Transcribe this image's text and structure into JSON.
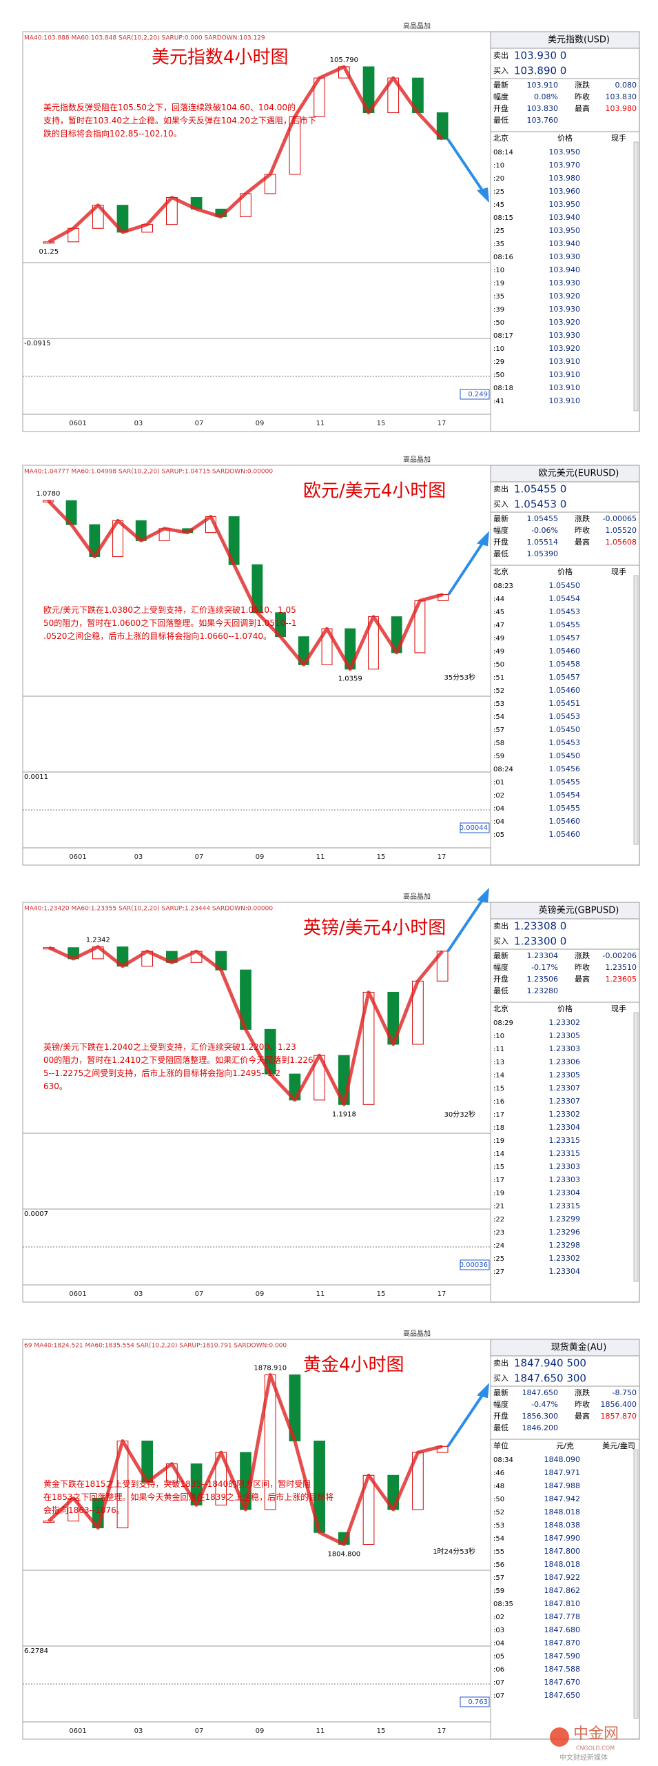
{
  "panels": [
    {
      "chart_title": "美元指数4小时图",
      "indicator": "MA40:103.888  MA60:103.848  SAR(10,2,20)  SARUP:0.000  SARDOWN:103.129",
      "toolbar": "高品晶加",
      "annotation": "美元指数反弹受阻在105.50之下，回落连续跌破104.60、104.00的支持，暂时在103.40之上企稳。如果今天反弹在104.20之下遇阻，后市下跌的目标将会指向102.85--102.10。",
      "hi_label": "105.790",
      "lo_label": "01.25",
      "osc_label": "-0.0915",
      "macd_label": "0.249",
      "x_labels": [
        "0601",
        "03",
        "07",
        "09",
        "11",
        "15",
        "17"
      ],
      "prices": [
        101.25,
        101.6,
        102.2,
        101.5,
        101.7,
        102.4,
        102.1,
        101.9,
        102.5,
        103.0,
        104.5,
        105.5,
        105.79,
        104.6,
        105.5,
        104.6,
        103.91
      ],
      "ylim": [
        100.8,
        106.2
      ],
      "quote": {
        "title": "美元指数(USD)",
        "sell": [
          "卖出",
          "103.930 0"
        ],
        "buy": [
          "买入",
          "103.890 0"
        ],
        "stats": [
          [
            "最新",
            "103.910",
            "涨跌",
            "0.080"
          ],
          [
            "幅度",
            "0.08%",
            "昨收",
            "103.830"
          ],
          [
            "开盘",
            "103.830",
            "最高",
            "103.980"
          ],
          [
            "最低",
            "103.760"
          ]
        ],
        "header": [
          "北京",
          "价格",
          "现手"
        ],
        "ticks": [
          [
            "08:14",
            "103.950"
          ],
          [
            ":10",
            "103.970"
          ],
          [
            ":20",
            "103.980"
          ],
          [
            ":25",
            "103.960"
          ],
          [
            ":45",
            "103.950"
          ],
          [
            "08:15",
            "103.940"
          ],
          [
            ":25",
            "103.950"
          ],
          [
            ":35",
            "103.940"
          ],
          [
            "08:16",
            "103.930"
          ],
          [
            ":10",
            "103.940"
          ],
          [
            ":19",
            "103.930"
          ],
          [
            ":35",
            "103.920"
          ],
          [
            ":39",
            "103.930"
          ],
          [
            ":50",
            "103.920"
          ],
          [
            "08:17",
            "103.930"
          ],
          [
            ":10",
            "103.920"
          ],
          [
            ":29",
            "103.910"
          ],
          [
            ":50",
            "103.910"
          ],
          [
            "08:18",
            "103.910"
          ],
          [
            ":41",
            "103.910"
          ]
        ]
      }
    },
    {
      "chart_title": "欧元/美元4小时图",
      "indicator": "MA40:1.04777  MA60:1.04998  SAR(10,2,20)  SARUP:1.04715  SARDOWN:0.00000",
      "toolbar": "高品晶加",
      "annotation": "欧元/美元下跌在1.0380之上受到支持，汇价连续突破1.0510、1.0550的阻力，暂时在1.0600之下回落整理。如果今天回调到1.0510--1.0520之间企稳，后市上涨的目标将会指向1.0660--1.0740。",
      "hi_label": "1.0780",
      "lo_label": "1.0359",
      "timer": "35分53秒",
      "osc_label": "0.0011",
      "macd_label": "0.00044",
      "x_labels": [
        "0601",
        "03",
        "07",
        "09",
        "11",
        "15",
        "17"
      ],
      "prices": [
        1.078,
        1.072,
        1.064,
        1.073,
        1.068,
        1.071,
        1.07,
        1.074,
        1.062,
        1.05,
        1.044,
        1.037,
        1.046,
        1.0359,
        1.049,
        1.04,
        1.053,
        1.05455
      ],
      "ylim": [
        1.03,
        1.082
      ],
      "quote": {
        "title": "欧元美元(EURUSD)",
        "sell": [
          "卖出",
          "1.05455 0"
        ],
        "buy": [
          "买入",
          "1.05453 0"
        ],
        "stats": [
          [
            "最新",
            "1.05455",
            "涨跌",
            "-0.00065"
          ],
          [
            "幅度",
            "-0.06%",
            "昨收",
            "1.05520"
          ],
          [
            "开盘",
            "1.05514",
            "最高",
            "1.05608"
          ],
          [
            "最低",
            "1.05390"
          ]
        ],
        "header": [
          "北京",
          "价格",
          "现手"
        ],
        "ticks": [
          [
            "08:23",
            "1.05450"
          ],
          [
            ":44",
            "1.05454"
          ],
          [
            ":45",
            "1.05453"
          ],
          [
            ":47",
            "1.05455"
          ],
          [
            ":49",
            "1.05457"
          ],
          [
            ":49",
            "1.05460"
          ],
          [
            ":50",
            "1.05458"
          ],
          [
            ":51",
            "1.05457"
          ],
          [
            ":52",
            "1.05460"
          ],
          [
            ":53",
            "1.05451"
          ],
          [
            ":54",
            "1.05453"
          ],
          [
            ":57",
            "1.05450"
          ],
          [
            ":58",
            "1.05453"
          ],
          [
            ":59",
            "1.05450"
          ],
          [
            "08:24",
            "1.05456"
          ],
          [
            ":01",
            "1.05455"
          ],
          [
            ":02",
            "1.05454"
          ],
          [
            ":04",
            "1.05455"
          ],
          [
            ":04",
            "1.05460"
          ],
          [
            ":05",
            "1.05460"
          ]
        ]
      }
    },
    {
      "chart_title": "英镑/美元4小时图",
      "indicator": "MA40:1.23420  MA60:1.23355  SAR(10,2,20)  SARUP:1.23444  SARDOWN:0.00000",
      "toolbar": "高品晶加",
      "annotation": "英镑/美元下跌在1.2040之上受到支持，汇价连续突破1.2200、1.2300的阻力，暂时在1.2410之下受阻回落整理。如果汇价今天回落到1.2265--1.2275之间受到支持，后市上涨的目标将会指向1.2495--1.2630。",
      "hi_label": "1.2342",
      "lo_label": "1.1918",
      "timer": "30分32秒",
      "osc_label": "0.0007",
      "macd_label": "0.00036",
      "x_labels": [
        "0601",
        "03",
        "07",
        "09",
        "11",
        "15",
        "17"
      ],
      "prices": [
        1.234,
        1.231,
        1.2342,
        1.229,
        1.233,
        1.23,
        1.233,
        1.228,
        1.212,
        1.2,
        1.193,
        1.205,
        1.1918,
        1.222,
        1.208,
        1.225,
        1.23304
      ],
      "ylim": [
        1.185,
        1.241
      ],
      "quote": {
        "title": "英镑美元(GBPUSD)",
        "sell": [
          "卖出",
          "1.23308 0"
        ],
        "buy": [
          "买入",
          "1.23300 0"
        ],
        "stats": [
          [
            "最新",
            "1.23304",
            "涨跌",
            "-0.00206"
          ],
          [
            "幅度",
            "-0.17%",
            "昨收",
            "1.23510"
          ],
          [
            "开盘",
            "1.23506",
            "最高",
            "1.23605"
          ],
          [
            "最低",
            "1.23280"
          ]
        ],
        "header": [
          "北京",
          "价格",
          "现手"
        ],
        "ticks": [
          [
            "08:29",
            "1.23302"
          ],
          [
            ":10",
            "1.23305"
          ],
          [
            ":11",
            "1.23303"
          ],
          [
            ":13",
            "1.23306"
          ],
          [
            ":14",
            "1.23305"
          ],
          [
            ":15",
            "1.23307"
          ],
          [
            ":16",
            "1.23307"
          ],
          [
            ":17",
            "1.23302"
          ],
          [
            ":18",
            "1.23304"
          ],
          [
            ":19",
            "1.23315"
          ],
          [
            ":14",
            "1.23315"
          ],
          [
            ":15",
            "1.23303"
          ],
          [
            ":17",
            "1.23303"
          ],
          [
            ":19",
            "1.23304"
          ],
          [
            ":21",
            "1.23315"
          ],
          [
            ":22",
            "1.23299"
          ],
          [
            ":23",
            "1.23296"
          ],
          [
            ":24",
            "1.23298"
          ],
          [
            ":25",
            "1.23302"
          ],
          [
            ":27",
            "1.23304"
          ]
        ]
      }
    },
    {
      "chart_title": "黄金4小时图",
      "indicator": "69 MA40:1824.521  MA60:1835.554  SAR(10,2,20)  SARUP:1810.791  SARDOWN:0.000",
      "toolbar": "高品晶加",
      "annotation": "黄金下跌在1815之上受到支持，突破1835--1840的阻力区间，暂时受阻在1853之下回落整理。如果今天黄金回落在1839之上企稳，后市上涨的目标将会指向1863--1876。",
      "hi_label": "1878.910",
      "lo_label": "1804.800",
      "timer": "1时24分53秒",
      "osc_label": "6.2784",
      "macd_label": "0.763",
      "x_labels": [
        "0601",
        "03",
        "07",
        "09",
        "11",
        "15",
        "17"
      ],
      "prices": [
        1815,
        1825,
        1812,
        1850,
        1832,
        1840,
        1822,
        1845,
        1820,
        1878.91,
        1850,
        1810,
        1804.8,
        1835,
        1820,
        1845,
        1847.65
      ],
      "ylim": [
        1795,
        1886
      ],
      "quote": {
        "title": "现货黄金(AU)",
        "sell": [
          "卖出",
          "1847.940 500"
        ],
        "buy": [
          "买入",
          "1847.650 300"
        ],
        "stats": [
          [
            "最新",
            "1847.650",
            "涨跌",
            "-8.750"
          ],
          [
            "幅度",
            "-0.47%",
            "昨收",
            "1856.400"
          ],
          [
            "开盘",
            "1856.300",
            "最高",
            "1857.870"
          ],
          [
            "最低",
            "1846.200"
          ]
        ],
        "header": [
          "单位",
          "元/克",
          "美元/盎司"
        ],
        "ticks": [
          [
            "08:34",
            "1848.090"
          ],
          [
            ":46",
            "1847.971"
          ],
          [
            ":48",
            "1847.988"
          ],
          [
            ":50",
            "1847.942"
          ],
          [
            ":52",
            "1848.018"
          ],
          [
            ":53",
            "1848.038"
          ],
          [
            ":54",
            "1847.990"
          ],
          [
            ":55",
            "1847.800"
          ],
          [
            ":56",
            "1848.018"
          ],
          [
            ":57",
            "1847.922"
          ],
          [
            ":59",
            "1847.862"
          ],
          [
            "08:35",
            "1847.810"
          ],
          [
            ":02",
            "1847.778"
          ],
          [
            ":03",
            "1847.680"
          ],
          [
            ":04",
            "1847.870"
          ],
          [
            ":05",
            "1847.590"
          ],
          [
            ":06",
            "1847.588"
          ],
          [
            ":07",
            "1847.670"
          ],
          [
            ":07",
            "1847.650"
          ]
        ]
      }
    }
  ],
  "watermark": {
    "brand": "中金网",
    "site": "CNGOLD.COM",
    "slogan": "中文财经新媒体"
  }
}
